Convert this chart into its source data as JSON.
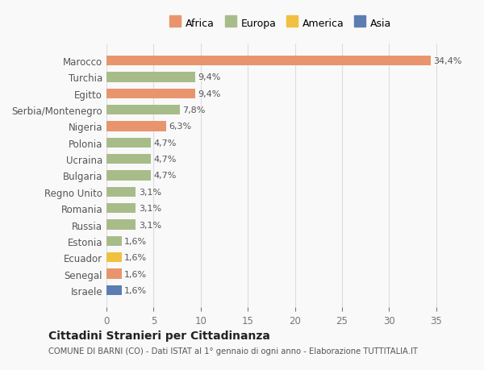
{
  "categories": [
    "Israele",
    "Senegal",
    "Ecuador",
    "Estonia",
    "Russia",
    "Romania",
    "Regno Unito",
    "Bulgaria",
    "Ucraina",
    "Polonia",
    "Nigeria",
    "Serbia/Montenegro",
    "Egitto",
    "Turchia",
    "Marocco"
  ],
  "values": [
    1.6,
    1.6,
    1.6,
    1.6,
    3.1,
    3.1,
    3.1,
    4.7,
    4.7,
    4.7,
    6.3,
    7.8,
    9.4,
    9.4,
    34.4
  ],
  "colors": [
    "#5b7db1",
    "#e8956d",
    "#f0c040",
    "#a8bc8a",
    "#a8bc8a",
    "#a8bc8a",
    "#a8bc8a",
    "#a8bc8a",
    "#a8bc8a",
    "#a8bc8a",
    "#e8956d",
    "#a8bc8a",
    "#e8956d",
    "#a8bc8a",
    "#e8956d"
  ],
  "labels": [
    "1,6%",
    "1,6%",
    "1,6%",
    "1,6%",
    "3,1%",
    "3,1%",
    "3,1%",
    "4,7%",
    "4,7%",
    "4,7%",
    "6,3%",
    "7,8%",
    "9,4%",
    "9,4%",
    "34,4%"
  ],
  "legend": {
    "Africa": "#e8956d",
    "Europa": "#a8bc8a",
    "America": "#f0c040",
    "Asia": "#5b7db1"
  },
  "title": "Cittadini Stranieri per Cittadinanza",
  "subtitle": "COMUNE DI BARNI (CO) - Dati ISTAT al 1° gennaio di ogni anno - Elaborazione TUTTITALIA.IT",
  "xlim": [
    0,
    37
  ],
  "xticks": [
    0,
    5,
    10,
    15,
    20,
    25,
    30,
    35
  ],
  "background_color": "#f9f9f9",
  "bar_bg_color": "#ffffff"
}
